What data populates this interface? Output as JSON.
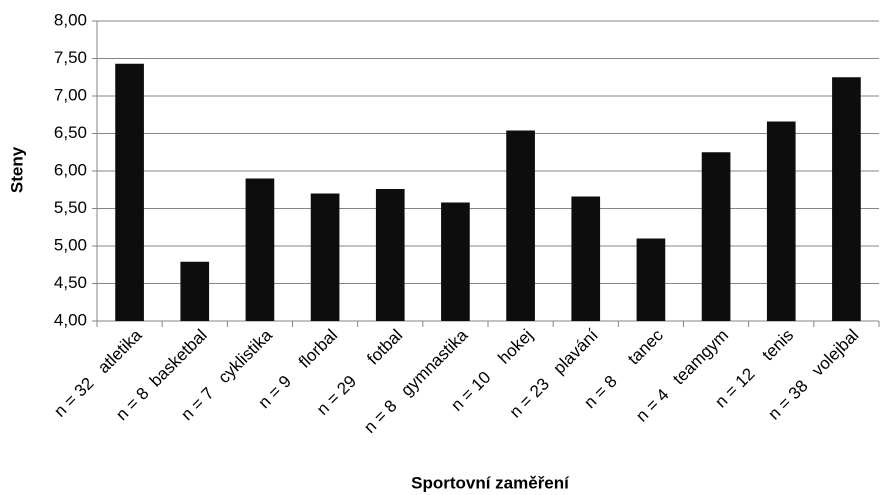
{
  "chart_data": {
    "type": "bar",
    "y_label": "Steny",
    "x_label": "Sportovní zaměření",
    "categories": [
      "n = 32   atletika",
      "n = 8  basketbal",
      "n = 7   cyklistika",
      "n = 9    florbal",
      "n = 29     fotbal",
      "n = 8   gymnastika",
      "n = 10    hokej",
      "n = 23   plavání",
      "n = 8     tanec",
      "n = 4   teamgym",
      "n = 12    tenis",
      "n = 38   volejbal"
    ],
    "values": [
      7.43,
      4.79,
      5.9,
      5.7,
      5.76,
      5.58,
      6.54,
      5.66,
      5.1,
      6.25,
      6.66,
      7.25
    ],
    "color": "#0d0d0d",
    "ylim": [
      4,
      8
    ],
    "yticks": [
      {
        "value": 4,
        "label": "4,00"
      },
      {
        "value": 4.5,
        "label": "4,50"
      },
      {
        "value": 5,
        "label": "5,00"
      },
      {
        "value": 5.5,
        "label": "5,50"
      },
      {
        "value": 6,
        "label": "6,00"
      },
      {
        "value": 6.5,
        "label": "6,50"
      },
      {
        "value": 7,
        "label": "7,00"
      },
      {
        "value": 7.5,
        "label": "7,50"
      },
      {
        "value": 8,
        "label": "8,00"
      }
    ],
    "grid": true
  }
}
